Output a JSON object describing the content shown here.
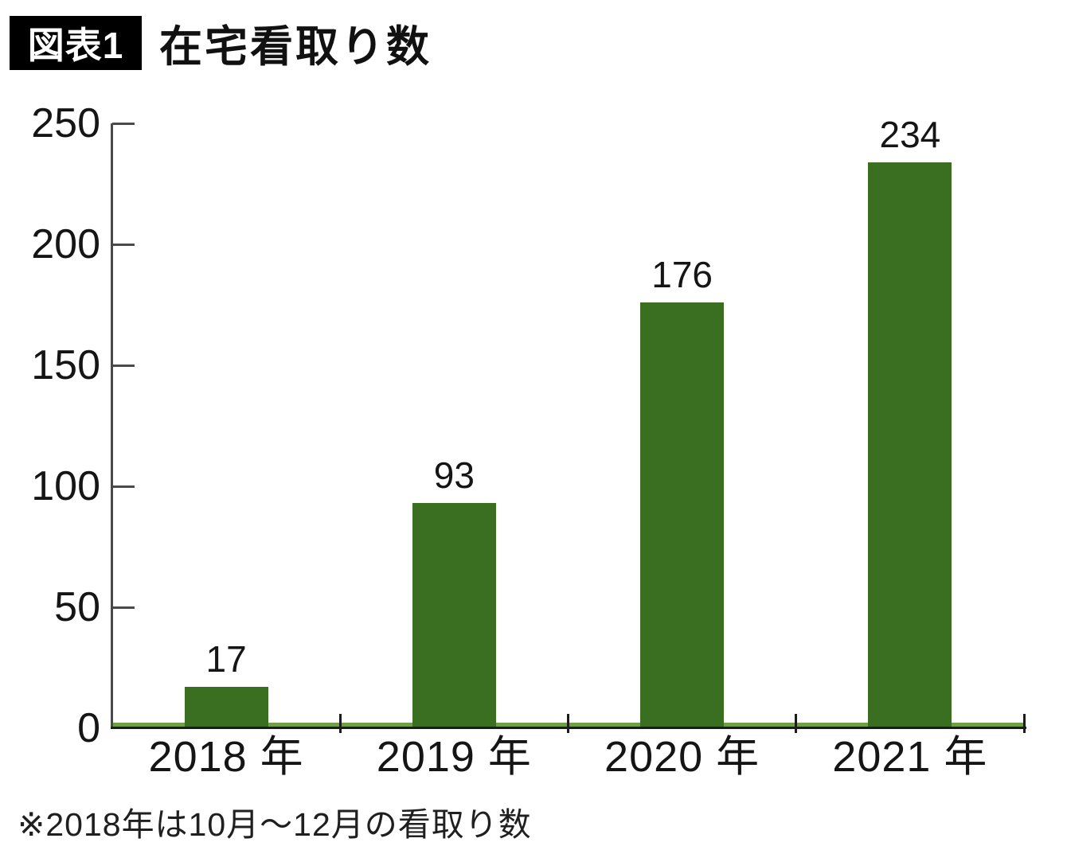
{
  "header": {
    "badge_label": "図表1",
    "title": "在宅看取り数"
  },
  "chart_data": {
    "type": "bar",
    "title": "在宅看取り数",
    "categories": [
      "2018 年",
      "2019 年",
      "2020 年",
      "2021 年"
    ],
    "values": [
      17,
      93,
      176,
      234
    ],
    "xlabel": "",
    "ylabel": "",
    "ylim": [
      0,
      250
    ],
    "yticks": [
      0,
      50,
      100,
      150,
      200,
      250
    ],
    "grid": false,
    "legend_position": "none",
    "bar_color": "#3a6e20",
    "baseline_strip_color": "#6fa046",
    "axis_color": "#1c1c1c"
  },
  "footnote": "※2018年は10月～12月の看取り数"
}
